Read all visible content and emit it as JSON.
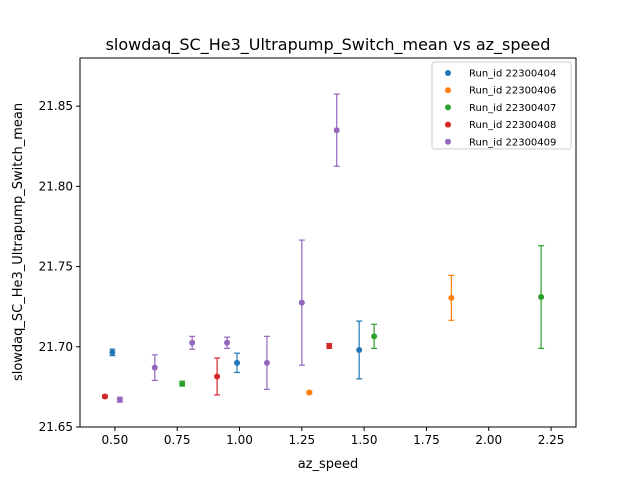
{
  "chart_data": {
    "type": "scatter",
    "title": "slowdaq_SC_He3_Ultrapump_Switch_mean vs az_speed",
    "xlabel": "az_speed",
    "ylabel": "slowdaq_SC_He3_Ultrapump_Switch_mean",
    "xlim": [
      0.36,
      2.35
    ],
    "ylim": [
      21.65,
      21.88
    ],
    "xticks": [
      "0.50",
      "0.75",
      "1.00",
      "1.25",
      "1.50",
      "1.75",
      "2.00",
      "2.25"
    ],
    "yticks": [
      "21.65",
      "21.70",
      "21.75",
      "21.80",
      "21.85"
    ],
    "legend_position": "top-right",
    "error_bars": true,
    "series": [
      {
        "name": "Run_id 22300404",
        "color": "#1f77b4",
        "points": [
          {
            "x": 0.49,
            "y": 21.6965,
            "err": 0.002
          },
          {
            "x": 0.99,
            "y": 21.69,
            "err": 0.006
          },
          {
            "x": 1.48,
            "y": 21.698,
            "err": 0.018
          }
        ]
      },
      {
        "name": "Run_id 22300406",
        "color": "#ff7f0e",
        "points": [
          {
            "x": 1.28,
            "y": 21.6715,
            "err": 0.0008
          },
          {
            "x": 1.85,
            "y": 21.7305,
            "err": 0.014
          }
        ]
      },
      {
        "name": "Run_id 22300407",
        "color": "#2ca02c",
        "points": [
          {
            "x": 0.77,
            "y": 21.677,
            "err": 0.0015
          },
          {
            "x": 1.54,
            "y": 21.7065,
            "err": 0.0075
          },
          {
            "x": 2.21,
            "y": 21.731,
            "err": 0.032
          }
        ]
      },
      {
        "name": "Run_id 22300408",
        "color": "#d62728",
        "points": [
          {
            "x": 0.46,
            "y": 21.669,
            "err": 0.0008
          },
          {
            "x": 0.91,
            "y": 21.6815,
            "err": 0.0115
          },
          {
            "x": 1.36,
            "y": 21.7005,
            "err": 0.0015
          }
        ]
      },
      {
        "name": "Run_id 22300409",
        "color": "#9467bd",
        "points": [
          {
            "x": 0.52,
            "y": 21.667,
            "err": 0.0015
          },
          {
            "x": 0.66,
            "y": 21.687,
            "err": 0.008
          },
          {
            "x": 0.81,
            "y": 21.7025,
            "err": 0.004
          },
          {
            "x": 0.95,
            "y": 21.7025,
            "err": 0.0035
          },
          {
            "x": 1.11,
            "y": 21.69,
            "err": 0.0165
          },
          {
            "x": 1.25,
            "y": 21.7275,
            "err": 0.039
          },
          {
            "x": 1.39,
            "y": 21.835,
            "err": 0.0225
          }
        ]
      }
    ]
  }
}
